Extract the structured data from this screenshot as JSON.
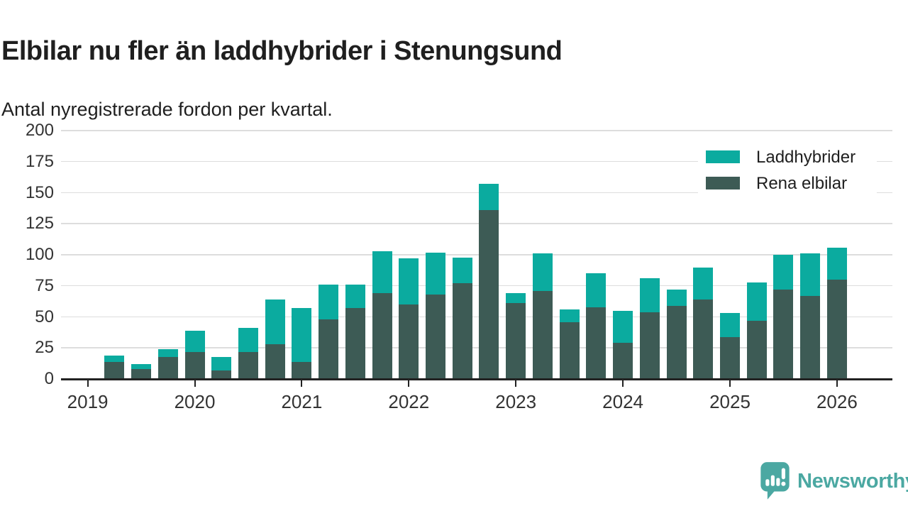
{
  "header": {
    "title": "Elbilar nu fler än laddhybrider i Stenungsund",
    "subtitle": "Antal nyregistrerade fordon per kvartal."
  },
  "legend": {
    "items": [
      {
        "label": "Laddhybrider",
        "color": "#0bab9f"
      },
      {
        "label": "Rena elbilar",
        "color": "#3d5b55"
      }
    ]
  },
  "footer": {
    "brand": "Newsworthy",
    "brand_color": "#4ba8a2"
  },
  "colors": {
    "laddhybrider": "#0bab9f",
    "rena_elbilar": "#3d5b55",
    "axis": "#222222",
    "tick_text": "#333333",
    "gridline": "#dddddd",
    "background": "#ffffff"
  },
  "chart_data": {
    "type": "bar",
    "stacked": true,
    "title": "Elbilar nu fler än laddhybrider i Stenungsund",
    "subtitle": "Antal nyregistrerade fordon per kvartal.",
    "grid": true,
    "legend_position": "top-right",
    "ylim": [
      0,
      200
    ],
    "y_ticks": [
      0,
      25,
      50,
      75,
      100,
      125,
      150,
      175,
      200
    ],
    "x_tick_labels": [
      "2019",
      "2020",
      "2021",
      "2022",
      "2023",
      "2024",
      "2025",
      "2026"
    ],
    "categories": [
      "2019 Q2",
      "2019 Q3",
      "2019 Q4",
      "2020 Q1",
      "2020 Q2",
      "2020 Q3",
      "2020 Q4",
      "2021 Q1",
      "2021 Q2",
      "2021 Q3",
      "2021 Q4",
      "2022 Q1",
      "2022 Q2",
      "2022 Q3",
      "2022 Q4",
      "2023 Q1",
      "2023 Q2",
      "2023 Q3",
      "2023 Q4",
      "2024 Q1",
      "2024 Q2",
      "2024 Q3",
      "2024 Q4",
      "2025 Q1",
      "2025 Q2",
      "2025 Q3",
      "2025 Q4",
      "2026 Q1"
    ],
    "series": [
      {
        "name": "Rena elbilar",
        "color": "#3d5b55",
        "values": [
          14,
          8,
          18,
          22,
          7,
          22,
          28,
          14,
          48,
          57,
          69,
          60,
          68,
          77,
          136,
          61,
          71,
          46,
          58,
          29,
          54,
          59,
          64,
          34,
          47,
          72,
          67,
          80
        ]
      },
      {
        "name": "Laddhybrider",
        "color": "#0bab9f",
        "values": [
          5,
          4,
          6,
          17,
          11,
          19,
          36,
          43,
          28,
          19,
          34,
          37,
          34,
          21,
          21,
          8,
          30,
          10,
          27,
          26,
          27,
          13,
          26,
          19,
          31,
          28,
          34,
          26
        ]
      }
    ]
  }
}
